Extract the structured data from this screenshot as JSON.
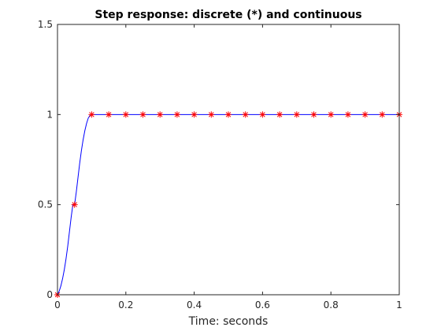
{
  "chart_data": {
    "type": "line",
    "title": "Step response: discrete (*) and continuous",
    "xlabel": "Time: seconds",
    "ylabel": "",
    "xlim": [
      0,
      1
    ],
    "ylim": [
      0,
      1.5
    ],
    "xticks": [
      0,
      0.2,
      0.4,
      0.6,
      0.8,
      1
    ],
    "xtick_labels": [
      "0",
      "0.2",
      "0.4",
      "0.6",
      "0.8",
      "1"
    ],
    "yticks": [
      0,
      0.5,
      1,
      1.5
    ],
    "ytick_labels": [
      "0",
      "0.5",
      "1",
      "1.5"
    ],
    "grid": false,
    "box": true,
    "series": [
      {
        "style": "line",
        "color": "#0000ff",
        "x": [
          0,
          0.005,
          0.01,
          0.015,
          0.02,
          0.025,
          0.03,
          0.035,
          0.04,
          0.045,
          0.05,
          0.055,
          0.06,
          0.065,
          0.07,
          0.075,
          0.08,
          0.085,
          0.09,
          0.095,
          0.1,
          0.15,
          0.2,
          0.3,
          0.4,
          0.5,
          0.6,
          0.7,
          0.8,
          0.9,
          1.0
        ],
        "y": [
          0,
          0.02,
          0.05,
          0.09,
          0.14,
          0.2,
          0.27,
          0.35,
          0.43,
          0.5,
          0.5,
          0.57,
          0.65,
          0.73,
          0.8,
          0.86,
          0.91,
          0.95,
          0.98,
          0.995,
          1.0,
          1.0,
          1.0,
          1.0,
          1.0,
          1.0,
          1.0,
          1.0,
          1.0,
          1.0,
          1.0
        ]
      },
      {
        "style": "markers",
        "marker": "*",
        "color": "#ff0000",
        "x": [
          0,
          0.05,
          0.1,
          0.15,
          0.2,
          0.25,
          0.3,
          0.35,
          0.4,
          0.45,
          0.5,
          0.55,
          0.6,
          0.65,
          0.7,
          0.75,
          0.8,
          0.85,
          0.9,
          0.95,
          1.0
        ],
        "y": [
          0,
          0.5,
          1,
          1,
          1,
          1,
          1,
          1,
          1,
          1,
          1,
          1,
          1,
          1,
          1,
          1,
          1,
          1,
          1,
          1,
          1
        ]
      }
    ]
  }
}
